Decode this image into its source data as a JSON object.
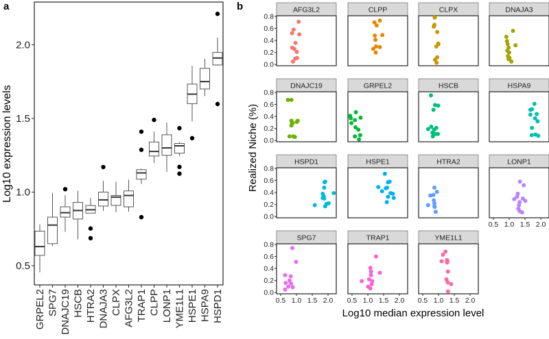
{
  "panel_labels": {
    "a": "a",
    "b": "b"
  },
  "chart_data": [
    {
      "type": "boxplot",
      "panel": "a",
      "xlabel": "",
      "ylabel": "Log10 expression levels",
      "ylim": [
        0.37,
        2.29
      ],
      "yticks": [
        "0.5",
        "1.0",
        "1.5",
        "2.0"
      ],
      "ytick_values": [
        0.5,
        1.0,
        1.5,
        2.0
      ],
      "categories": [
        "GRPEL2",
        "SPG7",
        "DNAJC19",
        "HSCB",
        "HTRA2",
        "DNAJA3",
        "CLPX",
        "AFG3L2",
        "TRAP1",
        "CLPP",
        "LONP1",
        "YME1L1",
        "HSPE1",
        "HSPA9",
        "HSPD1"
      ],
      "boxes": [
        {
          "low": 0.456,
          "q1": 0.57,
          "median": 0.63,
          "q3": 0.735,
          "high": 0.78,
          "outliers": []
        },
        {
          "low": 0.634,
          "q1": 0.65,
          "median": 0.776,
          "q3": 0.83,
          "high": 0.994,
          "outliers": []
        },
        {
          "low": 0.73,
          "q1": 0.83,
          "median": 0.86,
          "q3": 0.9,
          "high": 0.98,
          "outliers": [
            1.02
          ]
        },
        {
          "low": 0.68,
          "q1": 0.817,
          "median": 0.875,
          "q3": 0.93,
          "high": 1.01,
          "outliers": []
        },
        {
          "low": 0.857,
          "q1": 0.857,
          "median": 0.88,
          "q3": 0.909,
          "high": 0.96,
          "outliers": [
            0.753,
            0.687
          ]
        },
        {
          "low": 0.872,
          "q1": 0.905,
          "median": 0.947,
          "q3": 1.0,
          "high": 1.076,
          "outliers": [
            1.17
          ]
        },
        {
          "low": 0.863,
          "q1": 0.91,
          "median": 0.966,
          "q3": 0.977,
          "high": 1.07,
          "outliers": []
        },
        {
          "low": 0.867,
          "q1": 0.9,
          "median": 0.977,
          "q3": 1.008,
          "high": 1.084,
          "outliers": []
        },
        {
          "low": 1.055,
          "q1": 1.088,
          "median": 1.13,
          "q3": 1.152,
          "high": 1.16,
          "outliers": [
            1.41,
            1.287,
            0.83
          ]
        },
        {
          "low": 1.198,
          "q1": 1.245,
          "median": 1.276,
          "q3": 1.34,
          "high": 1.41,
          "outliers": [
            1.49
          ]
        },
        {
          "low": 1.137,
          "q1": 1.25,
          "median": 1.3,
          "q3": 1.389,
          "high": 1.472,
          "outliers": []
        },
        {
          "low": 1.244,
          "q1": 1.264,
          "median": 1.314,
          "q3": 1.33,
          "high": 1.34,
          "outliers": [
            1.434,
            1.171,
            1.125
          ]
        },
        {
          "low": 1.48,
          "q1": 1.6,
          "median": 1.665,
          "q3": 1.733,
          "high": 1.857,
          "outliers": [
            1.366
          ]
        },
        {
          "low": 1.652,
          "q1": 1.7,
          "median": 1.75,
          "q3": 1.84,
          "high": 1.904,
          "outliers": []
        },
        {
          "low": 1.858,
          "q1": 1.863,
          "median": 1.91,
          "q3": 1.948,
          "high": 2.049,
          "outliers": [
            2.21,
            1.598
          ]
        }
      ]
    },
    {
      "type": "scatter",
      "panel": "b",
      "xlabel": "Log10 median expression level",
      "ylabel": "Realized Niche (%)",
      "xlim": [
        0.37,
        2.26
      ],
      "ylim": [
        -0.02,
        0.81
      ],
      "xticks": [
        "0.5",
        "1.0",
        "1.5",
        "2.0"
      ],
      "xtick_values": [
        0.5,
        1.0,
        1.5,
        2.0
      ],
      "yticks": [
        "0.0",
        "0.2",
        "0.4",
        "0.6",
        "0.8"
      ],
      "ytick_values": [
        0,
        0.2,
        0.4,
        0.6,
        0.8
      ],
      "strip_fill": "#d9d9d9",
      "facets": [
        {
          "name": "AFG3L2",
          "color": "#F8766D",
          "x": [
            1.07,
            0.91,
            0.86,
            1.09,
            0.97,
            0.86,
            0.93,
            1.01,
            0.96,
            1.02,
            0.89
          ],
          "y": [
            0.71,
            0.58,
            0.52,
            0.5,
            0.36,
            0.28,
            0.26,
            0.21,
            0.1,
            0.11,
            0.05
          ]
        },
        {
          "name": "CLPP",
          "color": "#E58700",
          "x": [
            1.21,
            1.38,
            1.28,
            1.46,
            1.22,
            1.24,
            1.26,
            1.38,
            1.17,
            1.25
          ],
          "y": [
            0.7,
            0.73,
            0.65,
            0.49,
            0.48,
            0.41,
            0.3,
            0.29,
            0.26,
            0.2
          ]
        },
        {
          "name": "CLPX",
          "color": "#C99800",
          "x": [
            0.88,
            0.87,
            0.85,
            0.96,
            0.99,
            0.93,
            1.0,
            0.96,
            0.89,
            0.94
          ],
          "y": [
            0.78,
            0.66,
            0.63,
            0.54,
            0.35,
            0.3,
            0.34,
            0.12,
            0.08,
            0.03
          ]
        },
        {
          "name": "DNAJA3",
          "color": "#A3A500",
          "x": [
            1.12,
            0.91,
            0.93,
            0.95,
            0.98,
            0.94,
            1.2,
            1.0,
            0.96,
            1.01,
            0.98,
            1.07
          ],
          "y": [
            0.56,
            0.46,
            0.39,
            0.34,
            0.28,
            0.23,
            0.32,
            0.2,
            0.14,
            0.11,
            0.09,
            0.05
          ]
        },
        {
          "name": "DNAJC19",
          "color": "#6BB100",
          "x": [
            0.73,
            0.84,
            1.04,
            0.88,
            1.01,
            0.84,
            0.86,
            0.78,
            0.9,
            0.95,
            0.84
          ],
          "y": [
            0.675,
            0.675,
            0.33,
            0.29,
            0.31,
            0.25,
            0.28,
            0.07,
            0.07,
            0.06,
            0.33
          ]
        },
        {
          "name": "GRPEL2",
          "color": "#00BA38",
          "x": [
            0.44,
            0.46,
            0.62,
            0.59,
            0.77,
            0.48,
            0.61,
            0.7,
            0.59,
            0.76,
            0.72
          ],
          "y": [
            0.41,
            0.37,
            0.47,
            0.34,
            0.38,
            0.29,
            0.22,
            0.18,
            0.07,
            0.09,
            0.02
          ]
        },
        {
          "name": "HSCB",
          "color": "#00BF7D",
          "x": [
            0.76,
            0.89,
            0.99,
            0.84,
            0.67,
            0.77,
            0.86,
            0.93,
            0.81,
            0.91,
            0.98,
            0.82
          ],
          "y": [
            0.75,
            0.59,
            0.58,
            0.51,
            0.19,
            0.23,
            0.18,
            0.21,
            0.13,
            0.11,
            0.11,
            0.07
          ]
        },
        {
          "name": "HSPA9",
          "color": "#00C0AF",
          "x": [
            1.8,
            1.72,
            1.67,
            1.67,
            1.87,
            1.82,
            1.9,
            1.72,
            1.71,
            1.83,
            1.92
          ],
          "y": [
            0.61,
            0.52,
            0.51,
            0.43,
            0.44,
            0.37,
            0.32,
            0.21,
            0.09,
            0.1,
            0.08
          ]
        },
        {
          "name": "HSPD1",
          "color": "#00BCD8",
          "x": [
            1.91,
            1.89,
            1.88,
            1.83,
            1.86,
            1.83,
            1.88,
            2.18,
            1.58,
            1.95,
            2.02,
            1.91
          ],
          "y": [
            0.58,
            0.57,
            0.48,
            0.38,
            0.34,
            0.31,
            0.3,
            0.39,
            0.19,
            0.21,
            0.22,
            0.17
          ]
        },
        {
          "name": "HSPE1",
          "color": "#00B0F6",
          "x": [
            1.54,
            1.69,
            1.64,
            1.33,
            1.57,
            1.61,
            1.45,
            1.72,
            1.79,
            1.64,
            1.82,
            1.6
          ],
          "y": [
            0.71,
            0.58,
            0.57,
            0.49,
            0.47,
            0.48,
            0.42,
            0.39,
            0.38,
            0.33,
            0.31,
            0.24
          ]
        },
        {
          "name": "HTRA2",
          "color": "#619CFF",
          "x": [
            0.87,
            0.74,
            0.84,
            0.95,
            0.85,
            0.87,
            0.87,
            0.88,
            0.67,
            0.91
          ],
          "y": [
            0.48,
            0.35,
            0.36,
            0.41,
            0.27,
            0.22,
            0.17,
            0.16,
            0.19,
            0.08
          ]
        },
        {
          "name": "LONP1",
          "color": "#B983FF",
          "x": [
            1.34,
            1.46,
            1.27,
            1.25,
            1.16,
            1.43,
            1.51,
            1.33,
            1.31,
            1.29,
            1.33,
            1.41
          ],
          "y": [
            0.58,
            0.52,
            0.38,
            0.33,
            0.29,
            0.3,
            0.26,
            0.24,
            0.19,
            0.13,
            0.09,
            0.07
          ]
        },
        {
          "name": "SPG7",
          "color": "#E76BF3",
          "x": [
            0.87,
            0.99,
            0.64,
            0.82,
            0.66,
            0.78,
            0.83,
            0.74,
            0.88,
            0.64
          ],
          "y": [
            0.74,
            0.51,
            0.29,
            0.27,
            0.16,
            0.2,
            0.15,
            0.1,
            0.09,
            0.05
          ]
        },
        {
          "name": "TRAP1",
          "color": "#FD61D1",
          "x": [
            1.26,
            1.38,
            1.08,
            1.1,
            1.1,
            0.81,
            1.14,
            1.04,
            1.12,
            1.01,
            1.08
          ],
          "y": [
            0.6,
            0.33,
            0.41,
            0.35,
            0.29,
            0.19,
            0.19,
            0.22,
            0.14,
            0.1,
            0.07
          ]
        },
        {
          "name": "YME1L1",
          "color": "#FF67A4",
          "x": [
            1.22,
            1.14,
            1.27,
            1.28,
            1.1,
            1.27,
            1.3,
            1.25,
            1.29,
            1.4,
            1.3
          ],
          "y": [
            0.68,
            0.63,
            0.54,
            0.51,
            0.52,
            0.5,
            0.35,
            0.22,
            0.17,
            0.14,
            0.02
          ]
        }
      ]
    }
  ]
}
